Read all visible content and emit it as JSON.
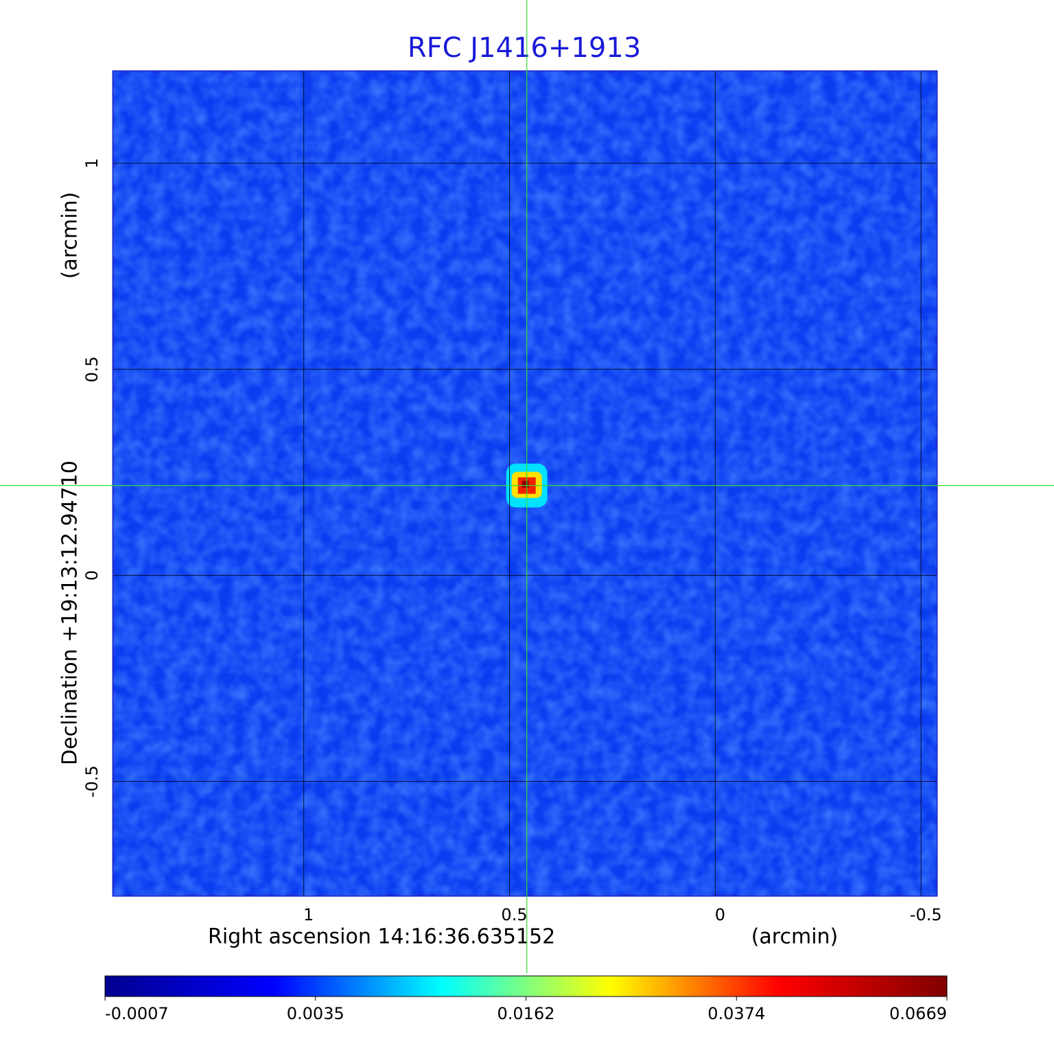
{
  "chart_data": {
    "type": "image",
    "title": "RFC J1416+1913",
    "x_label": "Right ascension  14:16:36.635152",
    "x_unit": "(arcmin)",
    "y_label": "Declination  +19:13:12.94710",
    "y_unit": "(arcmin)",
    "xlim": [
      1.463,
      -0.538
    ],
    "ylim": [
      -0.777,
      1.223
    ],
    "xticks": [
      1.0,
      0.5,
      0.0,
      -0.5
    ],
    "yticks": [
      1.0,
      0.5,
      0.0,
      -0.5
    ],
    "grid": true,
    "source": {
      "x": 0.458,
      "y": 0.218,
      "value": 0.0669
    },
    "colorbar_ticks": [
      -0.0007,
      0.0035,
      0.0162,
      0.0374,
      0.0669
    ],
    "colormap": [
      "#00008f",
      "#0000ff",
      "#00ffff",
      "#ffff00",
      "#ff0000",
      "#800000"
    ]
  }
}
